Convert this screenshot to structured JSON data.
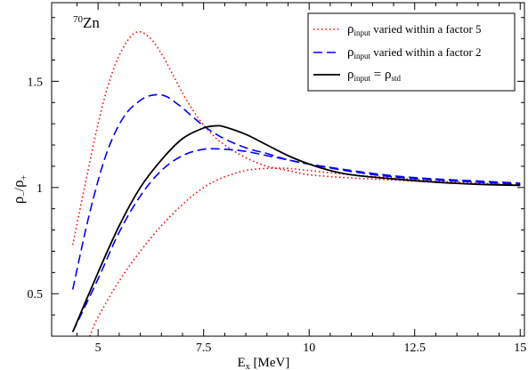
{
  "chart_data": {
    "type": "line",
    "annotation": {
      "mass": "70",
      "element": "Zn"
    },
    "xlabel": {
      "base": "E",
      "sub": "x",
      "rest": " [MeV]"
    },
    "ylabel": {
      "a": "ρ",
      "a_sub": "−",
      "sep": "/",
      "b": "ρ",
      "b_sub": "+"
    },
    "xlim": [
      3.9,
      15.1
    ],
    "ylim": [
      0.3,
      1.87
    ],
    "xticks": [
      {
        "value": 5,
        "label": "5"
      },
      {
        "value": 7.5,
        "label": "7.5"
      },
      {
        "value": 10,
        "label": "10"
      },
      {
        "value": 12.5,
        "label": "12.5"
      },
      {
        "value": 15,
        "label": "15"
      }
    ],
    "yticks": [
      {
        "value": 0.5,
        "label": "0.5"
      },
      {
        "value": 1.0,
        "label": "1"
      },
      {
        "value": 1.5,
        "label": "1.5"
      }
    ],
    "grid": false,
    "legend_position": "top-right",
    "series": [
      {
        "name": "ρinput varied within a factor 5",
        "legend": {
          "base": "ρ",
          "sub": "input",
          "rest": " varied within a factor 5"
        },
        "color": "#ff0000",
        "style": "dotted",
        "lines": [
          {
            "x": [
              4.4,
              4.7,
              5.0,
              5.3,
              5.6,
              5.9,
              6.2,
              6.5,
              6.8,
              7.1,
              7.4,
              7.7,
              8.0,
              8.5,
              9.0,
              9.5,
              10.0,
              11.0,
              12.0,
              13.0,
              14.0,
              15.0
            ],
            "y": [
              0.73,
              1.02,
              1.3,
              1.52,
              1.66,
              1.73,
              1.71,
              1.63,
              1.52,
              1.41,
              1.32,
              1.25,
              1.2,
              1.14,
              1.1,
              1.08,
              1.06,
              1.045,
              1.035,
              1.025,
              1.018,
              1.012
            ]
          },
          {
            "x": [
              4.8,
              5.0,
              5.5,
              6.0,
              6.5,
              7.0,
              7.5,
              8.0,
              8.5,
              9.0,
              9.5,
              10.0,
              11.0,
              12.0,
              13.0,
              14.0,
              15.0
            ],
            "y": [
              0.3,
              0.39,
              0.56,
              0.7,
              0.82,
              0.92,
              1.0,
              1.05,
              1.08,
              1.09,
              1.09,
              1.08,
              1.06,
              1.045,
              1.03,
              1.02,
              1.01
            ]
          }
        ]
      },
      {
        "name": "ρinput varied within a factor 2",
        "legend": {
          "base": "ρ",
          "sub": "input",
          "rest": " varied within a factor 2"
        },
        "color": "#0000ff",
        "style": "dashed",
        "lines": [
          {
            "x": [
              4.4,
              4.8,
              5.2,
              5.6,
              6.0,
              6.3,
              6.6,
              6.9,
              7.2,
              7.5,
              7.8,
              8.2,
              8.6,
              9.0,
              9.5,
              10.0,
              11.0,
              12.0,
              13.0,
              14.0,
              15.0
            ],
            "y": [
              0.52,
              0.88,
              1.16,
              1.33,
              1.41,
              1.435,
              1.43,
              1.39,
              1.34,
              1.29,
              1.25,
              1.21,
              1.18,
              1.16,
              1.13,
              1.11,
              1.075,
              1.05,
              1.035,
              1.025,
              1.015
            ]
          },
          {
            "x": [
              4.4,
              5.0,
              5.5,
              6.0,
              6.5,
              7.0,
              7.5,
              8.0,
              8.5,
              9.0,
              9.5,
              10.0,
              11.0,
              12.0,
              13.0,
              14.0,
              15.0
            ],
            "y": [
              0.32,
              0.57,
              0.79,
              0.96,
              1.08,
              1.15,
              1.18,
              1.18,
              1.17,
              1.15,
              1.13,
              1.11,
              1.08,
              1.055,
              1.04,
              1.03,
              1.02
            ]
          }
        ]
      },
      {
        "name": "ρinput = ρstd",
        "legend": {
          "base": "ρ",
          "sub": "input",
          "mid": " = ρ",
          "sub2": "std"
        },
        "color": "#000000",
        "style": "solid",
        "lines": [
          {
            "x": [
              4.4,
              5.0,
              5.5,
              6.0,
              6.5,
              7.0,
              7.5,
              7.8,
              8.0,
              8.5,
              9.0,
              9.5,
              10.0,
              10.5,
              11.0,
              12.0,
              13.0,
              14.0,
              15.0
            ],
            "y": [
              0.32,
              0.6,
              0.82,
              1.0,
              1.13,
              1.23,
              1.28,
              1.29,
              1.285,
              1.25,
              1.2,
              1.15,
              1.11,
              1.08,
              1.06,
              1.04,
              1.025,
              1.015,
              1.01
            ]
          }
        ]
      }
    ]
  }
}
